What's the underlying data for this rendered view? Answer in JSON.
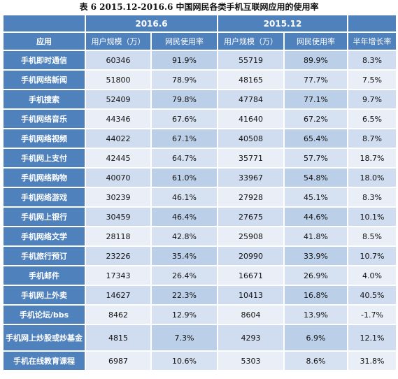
{
  "title": "表 6 2015.12-2016.6 中国网民各类手机互联网应用的使用率",
  "table": {
    "periods": [
      "2016.6",
      "2015.12"
    ],
    "columns": [
      "应用",
      "用户规模（万）",
      "网民使用率",
      "用户规模（万）",
      "网民使用率",
      "半年增长率"
    ],
    "rows": [
      {
        "app": "手机即时通信",
        "users_2016_6": "60346",
        "rate_2016_6": "91.9%",
        "users_2015_12": "55719",
        "rate_2015_12": "89.9%",
        "growth": "8.3%"
      },
      {
        "app": "手机网络新闻",
        "users_2016_6": "51800",
        "rate_2016_6": "78.9%",
        "users_2015_12": "48165",
        "rate_2015_12": "77.7%",
        "growth": "7.5%"
      },
      {
        "app": "手机搜索",
        "users_2016_6": "52409",
        "rate_2016_6": "79.8%",
        "users_2015_12": "47784",
        "rate_2015_12": "77.1%",
        "growth": "9.7%"
      },
      {
        "app": "手机网络音乐",
        "users_2016_6": "44346",
        "rate_2016_6": "67.6%",
        "users_2015_12": "41640",
        "rate_2015_12": "67.2%",
        "growth": "6.5%"
      },
      {
        "app": "手机网络视频",
        "users_2016_6": "44022",
        "rate_2016_6": "67.1%",
        "users_2015_12": "40508",
        "rate_2015_12": "65.4%",
        "growth": "8.7%"
      },
      {
        "app": "手机网上支付",
        "users_2016_6": "42445",
        "rate_2016_6": "64.7%",
        "users_2015_12": "35771",
        "rate_2015_12": "57.7%",
        "growth": "18.7%"
      },
      {
        "app": "手机网络购物",
        "users_2016_6": "40070",
        "rate_2016_6": "61.0%",
        "users_2015_12": "33967",
        "rate_2015_12": "54.8%",
        "growth": "18.0%"
      },
      {
        "app": "手机网络游戏",
        "users_2016_6": "30239",
        "rate_2016_6": "46.1%",
        "users_2015_12": "27928",
        "rate_2015_12": "45.1%",
        "growth": "8.3%"
      },
      {
        "app": "手机网上银行",
        "users_2016_6": "30459",
        "rate_2016_6": "46.4%",
        "users_2015_12": "27675",
        "rate_2015_12": "44.6%",
        "growth": "10.1%"
      },
      {
        "app": "手机网络文学",
        "users_2016_6": "28118",
        "rate_2016_6": "42.8%",
        "users_2015_12": "25908",
        "rate_2015_12": "41.8%",
        "growth": "8.5%"
      },
      {
        "app": "手机旅行预订",
        "users_2016_6": "23226",
        "rate_2016_6": "35.4%",
        "users_2015_12": "20990",
        "rate_2015_12": "33.9%",
        "growth": "10.7%"
      },
      {
        "app": "手机邮件",
        "users_2016_6": "17343",
        "rate_2016_6": "26.4%",
        "users_2015_12": "16671",
        "rate_2015_12": "26.9%",
        "growth": "4.0%"
      },
      {
        "app": "手机网上外卖",
        "users_2016_6": "14627",
        "rate_2016_6": "22.3%",
        "users_2015_12": "10413",
        "rate_2015_12": "16.8%",
        "growth": "40.5%"
      },
      {
        "app": "手机论坛/bbs",
        "users_2016_6": "8462",
        "rate_2016_6": "12.9%",
        "users_2015_12": "8604",
        "rate_2015_12": "13.9%",
        "growth": "-1.7%"
      },
      {
        "app": "手机网上炒股或炒基金",
        "users_2016_6": "4815",
        "rate_2016_6": "7.3%",
        "users_2015_12": "4293",
        "rate_2015_12": "6.9%",
        "growth": "12.1%"
      },
      {
        "app": "手机在线教育课程",
        "users_2016_6": "6987",
        "rate_2016_6": "10.6%",
        "users_2015_12": "5303",
        "rate_2015_12": "8.6%",
        "growth": "31.8%"
      }
    ]
  },
  "colors": {
    "header": "#4f81bd",
    "row_light": "#e9eef7",
    "row_dark": "#d0dcef",
    "row_accent": "#bccfe8"
  }
}
